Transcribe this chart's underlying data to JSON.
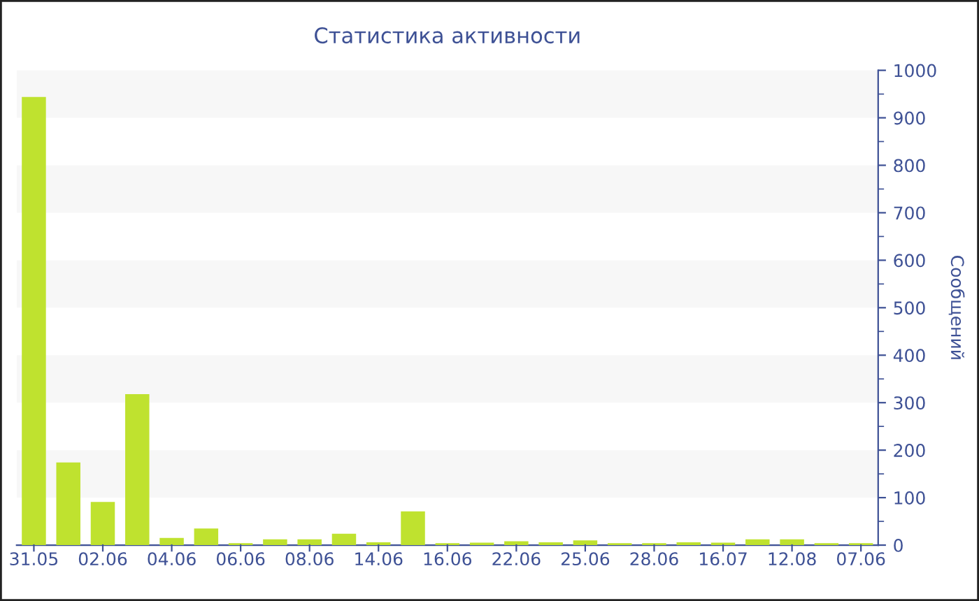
{
  "chart_data": {
    "type": "bar",
    "title": "Статистика активности",
    "ylabel": "Сообщений",
    "categories": [
      "31.05",
      null,
      "02.06",
      null,
      "04.06",
      null,
      "06.06",
      null,
      "08.06",
      null,
      "14.06",
      null,
      "16.06",
      null,
      "22.06",
      null,
      "25.06",
      null,
      "28.06",
      null,
      "16.07",
      null,
      "12.08",
      null,
      "07.06"
    ],
    "values": [
      944,
      174,
      91,
      318,
      15,
      35,
      4,
      12,
      12,
      24,
      6,
      71,
      4,
      5,
      8,
      6,
      10,
      4,
      4,
      6,
      5,
      12,
      12,
      4,
      4
    ],
    "color": "#bfe22f",
    "ylim": [
      0,
      1000
    ],
    "yticks": [
      0,
      100,
      200,
      300,
      400,
      500,
      600,
      700,
      800,
      900,
      1000
    ],
    "bands": [
      {
        "axis": "y",
        "from": 100,
        "to": 200,
        "color": "#f7f7f7"
      },
      {
        "axis": "y",
        "from": 300,
        "to": 400,
        "color": "#f7f7f7"
      },
      {
        "axis": "y",
        "from": 500,
        "to": 600,
        "color": "#f7f7f7"
      },
      {
        "axis": "y",
        "from": 700,
        "to": 800,
        "color": "#f7f7f7"
      },
      {
        "axis": "y",
        "from": 900,
        "to": 1000,
        "color": "#f7f7f7"
      }
    ]
  }
}
